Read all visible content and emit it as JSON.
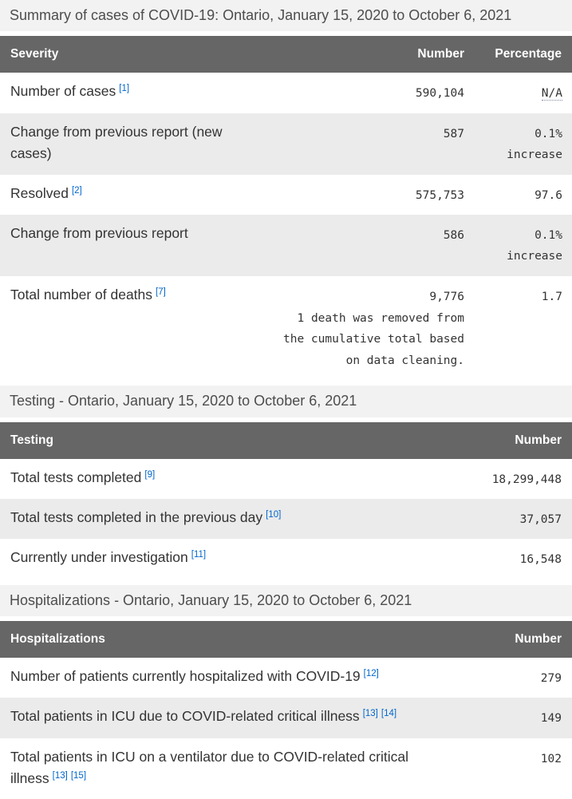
{
  "page": {
    "accent_colors": {
      "table_header_bg": "#666666",
      "table_header_text": "#ffffff",
      "caption_bg": "#f2f2f2",
      "zebra_row_bg": "#ebebeb",
      "footnote_link": "#0066cc"
    }
  },
  "sections": [
    {
      "caption": "Summary of cases of COVID-19: Ontario, January 15, 2020 to October 6, 2021",
      "columns": [
        "Severity",
        "Number",
        "Percentage"
      ],
      "rows": [
        {
          "label": "Number of cases",
          "footnotes": [
            "[1]"
          ],
          "number": "590,104",
          "percentage": "N/A",
          "percentage_abbr": true
        },
        {
          "label": "Change from previous report (new cases)",
          "footnotes": [],
          "number": "587",
          "percentage": "0.1% increase"
        },
        {
          "label": "Resolved",
          "footnotes": [
            "[2]"
          ],
          "number": "575,753",
          "percentage": "97.6"
        },
        {
          "label": "Change from previous report",
          "footnotes": [],
          "number": "586",
          "percentage": "0.1% increase"
        },
        {
          "label": "Total number of deaths",
          "footnotes": [
            "[7]"
          ],
          "number": "9,776",
          "note": "1 death was removed from the cumulative total based on data cleaning.",
          "percentage": "1.7"
        }
      ]
    },
    {
      "caption": "Testing - Ontario, January 15, 2020 to October 6, 2021",
      "columns": [
        "Testing",
        "Number"
      ],
      "rows": [
        {
          "label": "Total tests completed",
          "footnotes": [
            "[9]"
          ],
          "number": "18,299,448"
        },
        {
          "label": "Total tests completed in the previous day",
          "footnotes": [
            "[10]"
          ],
          "number": "37,057"
        },
        {
          "label": "Currently under investigation",
          "footnotes": [
            "[11]"
          ],
          "number": "16,548"
        }
      ]
    },
    {
      "caption": "Hospitalizations - Ontario, January 15, 2020 to October 6, 2021",
      "columns": [
        "Hospitalizations",
        "Number"
      ],
      "rows": [
        {
          "label": "Number of patients currently hospitalized with COVID-19",
          "footnotes": [
            "[12]"
          ],
          "number": "279"
        },
        {
          "label": "Total patients in ICU due to COVID-related critical illness",
          "footnotes": [
            "[13]",
            "[14]"
          ],
          "number": "149"
        },
        {
          "label": "Total patients in ICU on a ventilator due to COVID-related critical illness",
          "footnotes": [
            "[13]",
            "[15]"
          ],
          "number": "102"
        }
      ]
    }
  ]
}
